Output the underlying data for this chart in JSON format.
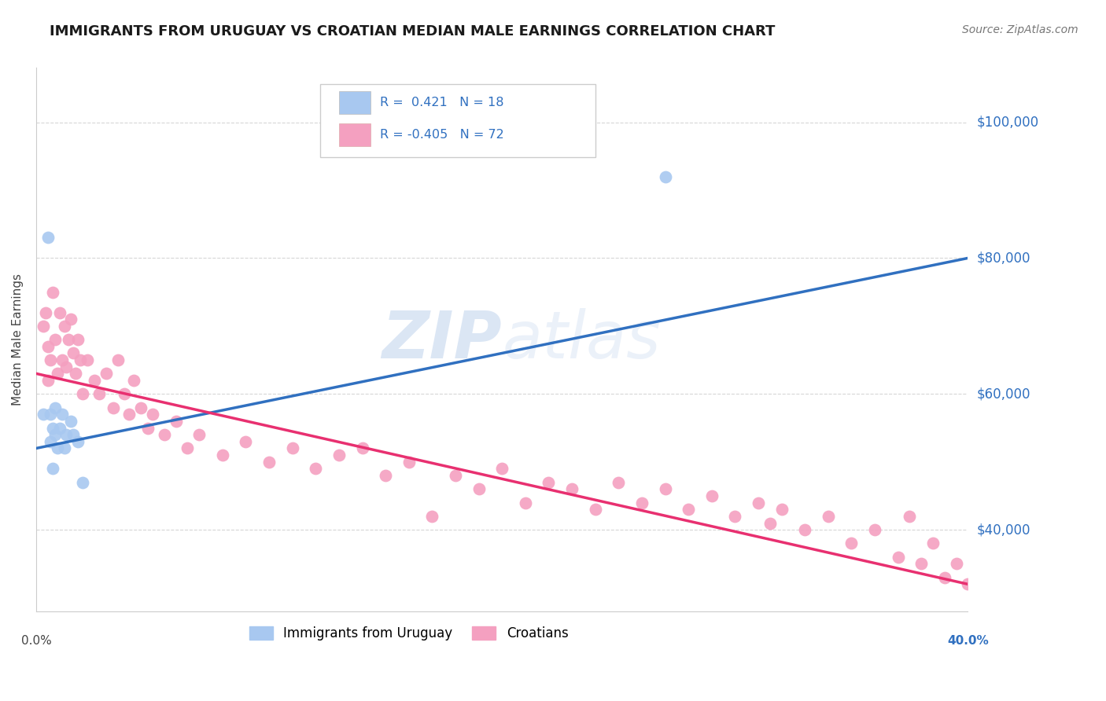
{
  "title": "IMMIGRANTS FROM URUGUAY VS CROATIAN MEDIAN MALE EARNINGS CORRELATION CHART",
  "source": "Source: ZipAtlas.com",
  "ylabel": "Median Male Earnings",
  "ytick_labels": [
    "$40,000",
    "$60,000",
    "$80,000",
    "$100,000"
  ],
  "ytick_values": [
    40000,
    60000,
    80000,
    100000
  ],
  "xlim": [
    0.0,
    0.4
  ],
  "ylim": [
    28000,
    108000
  ],
  "legend1_R": "0.421",
  "legend1_N": "18",
  "legend2_R": "-0.405",
  "legend2_N": "72",
  "uruguay_color": "#A8C8F0",
  "croatian_color": "#F4A0C0",
  "line_blue": "#3070C0",
  "line_pink": "#E83070",
  "background_color": "#FFFFFF",
  "watermark_zip": "ZIP",
  "watermark_atlas": "atlas",
  "blue_line_y0": 52000,
  "blue_line_y1": 80000,
  "pink_line_y0": 63000,
  "pink_line_y1": 32000,
  "uruguay_points_x": [
    0.003,
    0.005,
    0.006,
    0.006,
    0.007,
    0.007,
    0.008,
    0.008,
    0.009,
    0.01,
    0.011,
    0.012,
    0.013,
    0.015,
    0.016,
    0.018,
    0.02,
    0.27
  ],
  "uruguay_points_y": [
    57000,
    83000,
    57000,
    53000,
    55000,
    49000,
    58000,
    54000,
    52000,
    55000,
    57000,
    52000,
    54000,
    56000,
    54000,
    53000,
    47000,
    92000
  ],
  "croatian_points_x": [
    0.003,
    0.004,
    0.005,
    0.005,
    0.006,
    0.007,
    0.008,
    0.009,
    0.01,
    0.011,
    0.012,
    0.013,
    0.014,
    0.015,
    0.016,
    0.017,
    0.018,
    0.019,
    0.02,
    0.022,
    0.025,
    0.027,
    0.03,
    0.033,
    0.035,
    0.038,
    0.04,
    0.042,
    0.045,
    0.048,
    0.05,
    0.055,
    0.06,
    0.065,
    0.07,
    0.08,
    0.09,
    0.1,
    0.11,
    0.12,
    0.13,
    0.14,
    0.15,
    0.16,
    0.17,
    0.18,
    0.19,
    0.2,
    0.21,
    0.22,
    0.23,
    0.24,
    0.25,
    0.26,
    0.27,
    0.28,
    0.29,
    0.3,
    0.31,
    0.315,
    0.32,
    0.33,
    0.34,
    0.35,
    0.36,
    0.37,
    0.375,
    0.38,
    0.385,
    0.39,
    0.395,
    0.4
  ],
  "croatian_points_y": [
    70000,
    72000,
    67000,
    62000,
    65000,
    75000,
    68000,
    63000,
    72000,
    65000,
    70000,
    64000,
    68000,
    71000,
    66000,
    63000,
    68000,
    65000,
    60000,
    65000,
    62000,
    60000,
    63000,
    58000,
    65000,
    60000,
    57000,
    62000,
    58000,
    55000,
    57000,
    54000,
    56000,
    52000,
    54000,
    51000,
    53000,
    50000,
    52000,
    49000,
    51000,
    52000,
    48000,
    50000,
    42000,
    48000,
    46000,
    49000,
    44000,
    47000,
    46000,
    43000,
    47000,
    44000,
    46000,
    43000,
    45000,
    42000,
    44000,
    41000,
    43000,
    40000,
    42000,
    38000,
    40000,
    36000,
    42000,
    35000,
    38000,
    33000,
    35000,
    32000
  ]
}
